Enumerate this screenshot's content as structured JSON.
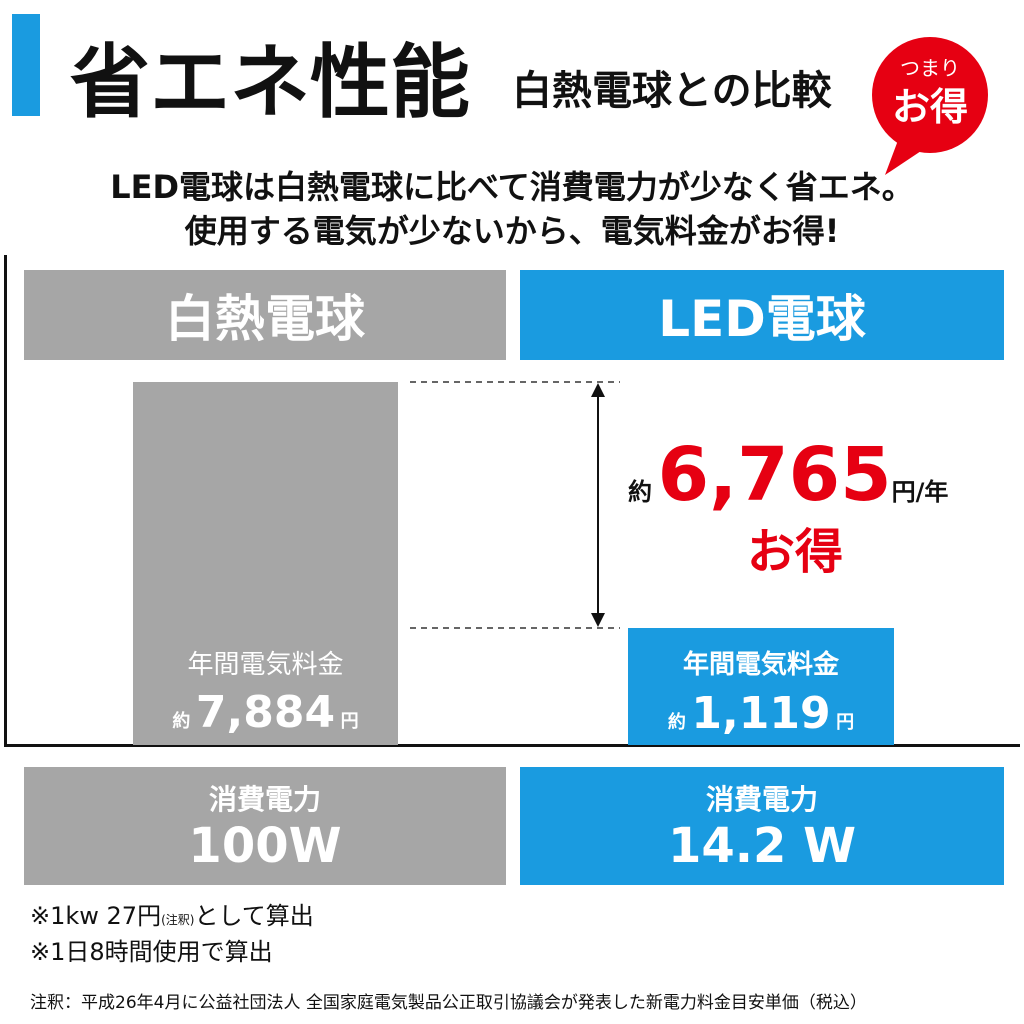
{
  "header": {
    "title": "省エネ性能",
    "subtitle": "白熱電球との比較",
    "badge": {
      "top": "つまり",
      "bottom": "お得"
    }
  },
  "intro": [
    "LED電球は白熱電球に比べて消費電力が少なく省エネ。",
    "使用する電気が少ないから、電気料金がお得!"
  ],
  "columns": [
    {
      "name": "白熱電球",
      "cost": {
        "label": "年間電気料金",
        "prefix": "約",
        "amount": "7,884",
        "unit": "円"
      },
      "power": {
        "label": "消費電力",
        "value": "100W"
      }
    },
    {
      "name": "LED電球",
      "cost": {
        "label": "年間電気料金",
        "prefix": "約",
        "amount": "1,119",
        "unit": "円"
      },
      "power": {
        "label": "消費電力",
        "value": "14.2 W"
      }
    }
  ],
  "savings": {
    "prefix": "約",
    "amount": "6,765",
    "unit": "円/年",
    "label": "お得"
  },
  "notes": [
    {
      "text": "※1kw 27円",
      "small": "(注釈)",
      "rest": "として算出"
    },
    {
      "text": "※1日8時間使用で算出"
    }
  ],
  "footnote": "注釈：平成26年4月に公益社団法人 全国家庭電気製品公正取引協議会が発表した新電力料金目安単価（税込）"
}
